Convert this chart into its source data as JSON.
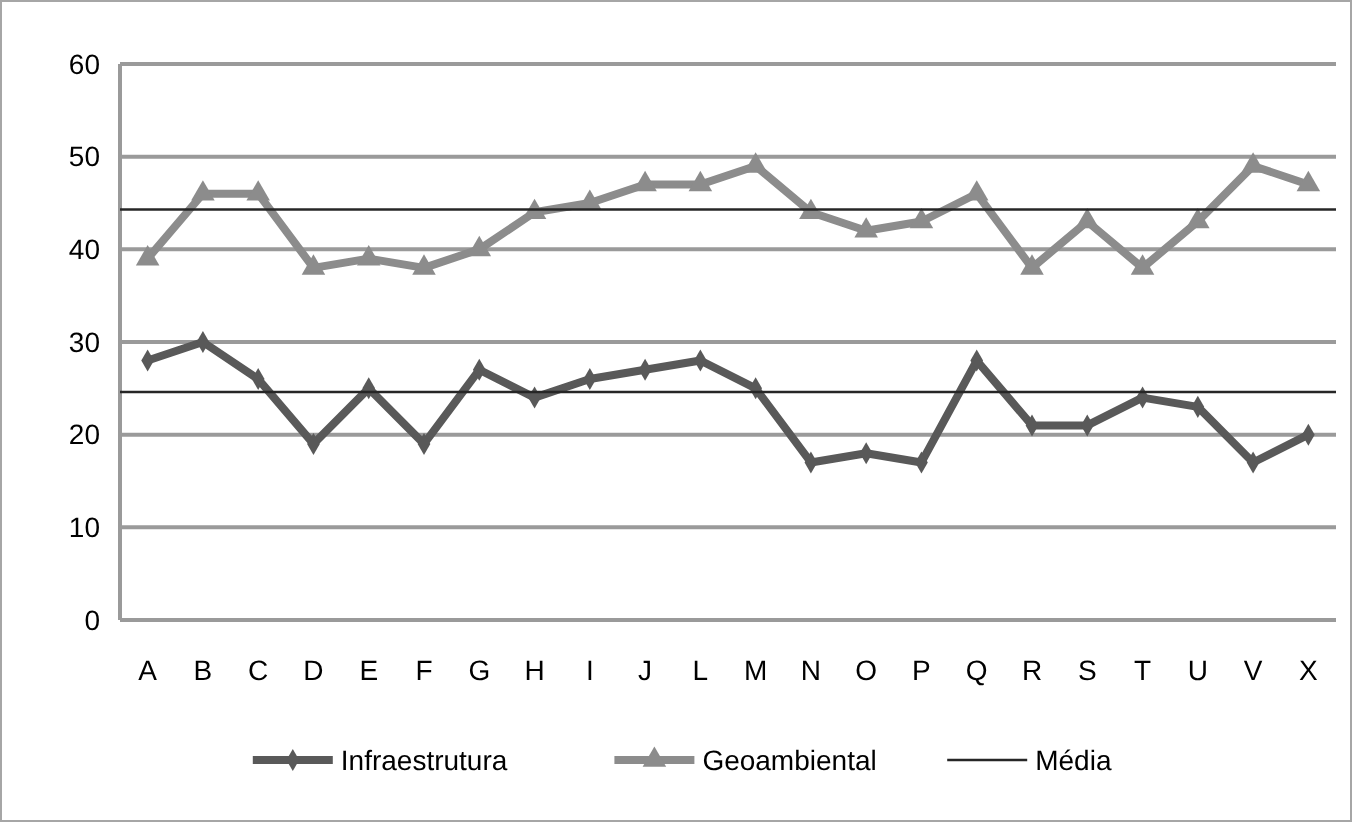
{
  "chart_data": {
    "type": "line",
    "categories": [
      "A",
      "B",
      "C",
      "D",
      "E",
      "F",
      "G",
      "H",
      "I",
      "J",
      "L",
      "M",
      "N",
      "O",
      "P",
      "Q",
      "R",
      "S",
      "T",
      "U",
      "V",
      "X"
    ],
    "series": [
      {
        "name": "Infraestrutura",
        "color": "#595959",
        "marker": "diamond",
        "values": [
          28,
          30,
          26,
          19,
          25,
          19,
          27,
          24,
          26,
          27,
          28,
          25,
          17,
          18,
          17,
          28,
          21,
          21,
          24,
          23,
          17,
          20
        ]
      },
      {
        "name": "Geoambiental",
        "color": "#8c8c8c",
        "marker": "triangle",
        "values": [
          39,
          46,
          46,
          38,
          39,
          38,
          40,
          44,
          45,
          47,
          47,
          49,
          44,
          42,
          43,
          46,
          38,
          43,
          38,
          43,
          49,
          47
        ]
      }
    ],
    "ref_lines": [
      {
        "axis": "y",
        "value": 44.3,
        "label": "Média",
        "color": "#262626"
      },
      {
        "axis": "y",
        "value": 24.6,
        "color": "#262626"
      }
    ],
    "ylim": [
      0,
      60
    ],
    "yticks": [
      0,
      10,
      20,
      30,
      40,
      50,
      60
    ],
    "grid": "y",
    "legend": "bottom"
  }
}
